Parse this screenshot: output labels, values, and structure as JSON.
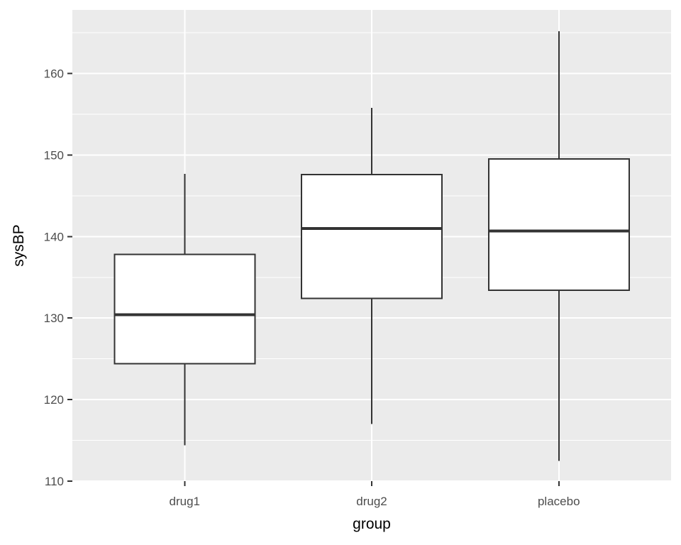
{
  "chart_data": {
    "type": "boxplot",
    "title": "",
    "xlabel": "group",
    "ylabel": "sysBP",
    "categories": [
      "drug1",
      "drug2",
      "placebo"
    ],
    "series": [
      {
        "name": "drug1",
        "whisker_low": 114.4,
        "q1": 124.4,
        "median": 130.4,
        "q3": 137.8,
        "whisker_high": 147.7
      },
      {
        "name": "drug2",
        "whisker_low": 117.0,
        "q1": 132.4,
        "median": 141.0,
        "q3": 147.6,
        "whisker_high": 155.8
      },
      {
        "name": "placebo",
        "whisker_low": 112.5,
        "q1": 133.4,
        "median": 140.7,
        "q3": 149.5,
        "whisker_high": 165.2
      }
    ],
    "ylim": [
      110,
      167.8
    ],
    "yticks": [
      110,
      120,
      130,
      140,
      150,
      160
    ],
    "yticks_minor": [
      115,
      125,
      135,
      145,
      155,
      165
    ],
    "grid": "on",
    "legend": "none",
    "colors": {
      "panel_bg": "#EBEBEB",
      "grid": "#FFFFFF",
      "box_fill": "#FFFFFF",
      "box_stroke": "#333333",
      "tick_label": "#4D4D4D",
      "axis_title": "#000000",
      "tick_mark": "#333333"
    }
  }
}
